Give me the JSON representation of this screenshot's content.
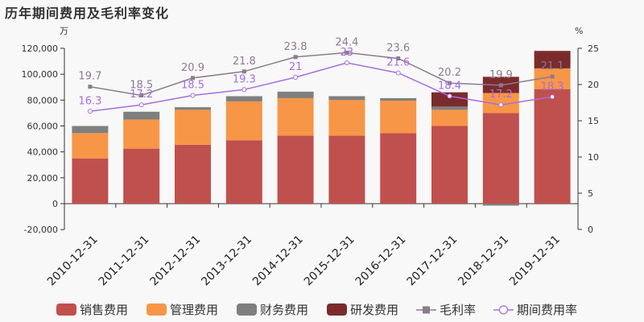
{
  "chart_data": {
    "type": "bar",
    "title": "历年期间费用及毛利率变化",
    "left_unit": "万",
    "right_unit": "%",
    "categories": [
      "2010-12-31",
      "2011-12-31",
      "2012-12-31",
      "2013-12-31",
      "2014-12-31",
      "2015-12-31",
      "2016-12-31",
      "2017-12-31",
      "2018-12-31",
      "2019-12-31"
    ],
    "left_axis": {
      "min": -20000,
      "max": 120000,
      "ticks": [
        -20000,
        0,
        20000,
        40000,
        60000,
        80000,
        100000,
        120000
      ],
      "tick_labels": [
        "-20,000",
        "0",
        "20,000",
        "40,000",
        "60,000",
        "80,000",
        "100,000",
        "120,000"
      ]
    },
    "right_axis": {
      "min": 0,
      "max": 25,
      "ticks": [
        0,
        5,
        10,
        15,
        20,
        25
      ],
      "tick_labels": [
        "0",
        "5",
        "10",
        "15",
        "20",
        "25"
      ]
    },
    "bar_series": [
      {
        "name": "销售费用",
        "color": "#c0504d",
        "values": [
          35000,
          42500,
          45500,
          49000,
          52500,
          52500,
          54500,
          60000,
          70000,
          88500
        ]
      },
      {
        "name": "管理费用",
        "color": "#f79646",
        "values": [
          19500,
          22500,
          27000,
          30000,
          29000,
          27500,
          25000,
          12500,
          15500,
          16000
        ]
      },
      {
        "name": "财务费用",
        "color": "#7f7f7f",
        "values": [
          5500,
          6000,
          2000,
          4000,
          5000,
          3000,
          2000,
          2500,
          -1500,
          0
        ]
      },
      {
        "name": "研发费用",
        "color": "#7b2b2b",
        "values": [
          0,
          0,
          0,
          0,
          0,
          0,
          0,
          11000,
          12500,
          13500
        ]
      }
    ],
    "line_series": [
      {
        "name": "毛利率",
        "color": "#8c7b8e",
        "marker": "square",
        "values": [
          19.7,
          18.5,
          20.9,
          21.8,
          23.8,
          24.4,
          23.6,
          20.2,
          19.9,
          21.1
        ],
        "labels": [
          "19.7",
          "18.5",
          "20.9",
          "21.8",
          "23.8",
          "24.4",
          "23.6",
          "20.2",
          "19.9",
          "21.1"
        ]
      },
      {
        "name": "期间费用率",
        "color": "#a66ee0",
        "marker": "circle",
        "values": [
          16.3,
          17.2,
          18.5,
          19.3,
          21,
          23,
          21.6,
          18.4,
          17.2,
          18.3
        ],
        "labels": [
          "16.3",
          "17.2",
          "18.5",
          "19.3",
          "21",
          "23",
          "21.6",
          "18.4",
          "17.2",
          "18.3"
        ]
      }
    ],
    "legend": [
      "销售费用",
      "管理费用",
      "财务费用",
      "研发费用",
      "毛利率",
      "期间费用率"
    ],
    "legend_position": "bottom",
    "grid": false
  }
}
